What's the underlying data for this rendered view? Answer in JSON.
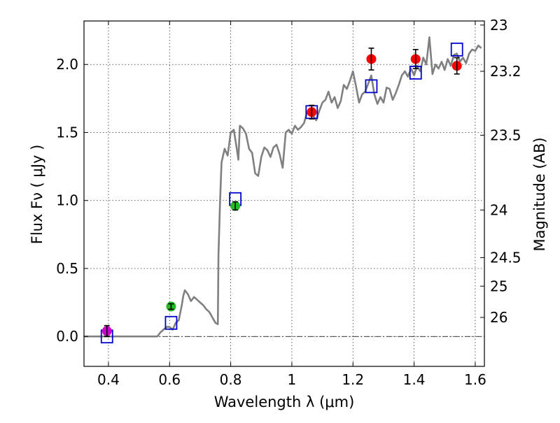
{
  "chart_data": {
    "type": "scatter",
    "title": "",
    "xlabel": "Wavelength  λ (μm)",
    "ylabel": "Flux  Fν  ( μJy )",
    "ylabel_right": "Magnitude (AB)",
    "xlim": [
      0.32,
      1.63
    ],
    "ylim": [
      -0.22,
      2.32
    ],
    "grid": true,
    "x_ticks": [
      0.4,
      0.6,
      0.8,
      1.0,
      1.2,
      1.4,
      1.6
    ],
    "x_tick_labels": [
      "0.4",
      "0.6",
      "0.8",
      "1",
      "1.2",
      "1.4",
      "1.6"
    ],
    "y_ticks": [
      0.0,
      0.5,
      1.0,
      1.5,
      2.0
    ],
    "y_tick_labels": [
      "0.0",
      "0.5",
      "1.0",
      "1.5",
      "2.0"
    ],
    "right_axis": {
      "labels": [
        "23",
        "23.2",
        "23.5",
        "24",
        "24.5",
        "25",
        "26"
      ],
      "flux_positions": [
        2.29,
        1.95,
        1.48,
        0.93,
        0.58,
        0.37,
        0.14
      ]
    },
    "series": [
      {
        "name": "model spectrum",
        "kind": "line",
        "color": "#808080",
        "x": [
          0.32,
          0.56,
          0.57,
          0.59,
          0.6,
          0.61,
          0.62,
          0.63,
          0.64,
          0.645,
          0.65,
          0.66,
          0.67,
          0.68,
          0.69,
          0.7,
          0.71,
          0.72,
          0.73,
          0.74,
          0.75,
          0.758,
          0.76,
          0.765,
          0.77,
          0.78,
          0.79,
          0.8,
          0.81,
          0.82,
          0.825,
          0.83,
          0.84,
          0.85,
          0.86,
          0.87,
          0.88,
          0.89,
          0.9,
          0.91,
          0.92,
          0.93,
          0.94,
          0.95,
          0.96,
          0.97,
          0.98,
          0.99,
          1.0,
          1.01,
          1.02,
          1.03,
          1.04,
          1.05,
          1.06,
          1.07,
          1.08,
          1.09,
          1.1,
          1.11,
          1.12,
          1.13,
          1.14,
          1.15,
          1.16,
          1.17,
          1.18,
          1.19,
          1.2,
          1.21,
          1.22,
          1.23,
          1.24,
          1.25,
          1.26,
          1.27,
          1.28,
          1.29,
          1.3,
          1.31,
          1.32,
          1.33,
          1.34,
          1.35,
          1.36,
          1.37,
          1.38,
          1.39,
          1.4,
          1.41,
          1.42,
          1.43,
          1.44,
          1.45,
          1.46,
          1.47,
          1.48,
          1.49,
          1.5,
          1.51,
          1.52,
          1.53,
          1.54,
          1.55,
          1.56,
          1.57,
          1.58,
          1.59,
          1.6,
          1.61,
          1.62
        ],
        "y": [
          0.0,
          0.0,
          0.03,
          0.07,
          0.07,
          0.05,
          0.1,
          0.12,
          0.23,
          0.3,
          0.34,
          0.31,
          0.26,
          0.29,
          0.27,
          0.25,
          0.23,
          0.2,
          0.18,
          0.14,
          0.1,
          0.09,
          0.6,
          0.98,
          1.28,
          1.38,
          1.33,
          1.5,
          1.52,
          1.38,
          1.3,
          1.55,
          1.53,
          1.49,
          1.38,
          1.35,
          1.2,
          1.18,
          1.32,
          1.39,
          1.37,
          1.32,
          1.39,
          1.41,
          1.34,
          1.24,
          1.5,
          1.52,
          1.49,
          1.55,
          1.52,
          1.54,
          1.57,
          1.65,
          1.67,
          1.62,
          1.59,
          1.66,
          1.72,
          1.74,
          1.8,
          1.72,
          1.76,
          1.68,
          1.73,
          1.85,
          1.82,
          1.88,
          1.95,
          1.84,
          1.72,
          1.78,
          1.8,
          1.86,
          1.92,
          1.78,
          1.71,
          1.76,
          1.72,
          1.83,
          1.82,
          1.74,
          1.79,
          1.85,
          1.92,
          1.95,
          1.91,
          1.97,
          1.92,
          1.99,
          1.95,
          2.05,
          2.0,
          2.2,
          1.93,
          2.0,
          1.97,
          2.02,
          1.96,
          2.04,
          1.99,
          2.07,
          2.08,
          2.02,
          2.05,
          2.01,
          2.08,
          2.11,
          2.1,
          2.14,
          2.12
        ]
      },
      {
        "name": "model photometry",
        "kind": "open-square",
        "color": "#0000cc",
        "x": [
          0.395,
          0.605,
          0.815,
          1.065,
          1.26,
          1.405,
          1.54
        ],
        "y": [
          0.0,
          0.1,
          1.01,
          1.65,
          1.84,
          1.94,
          2.11
        ]
      },
      {
        "name": "observed (magenta)",
        "kind": "circle",
        "color": "#cc00cc",
        "x": [
          0.395
        ],
        "y": [
          0.04
        ],
        "yerr": [
          0.04
        ]
      },
      {
        "name": "observed (green)",
        "kind": "circle",
        "color": "#22bb22",
        "x": [
          0.605,
          0.815
        ],
        "y": [
          0.22,
          0.96
        ],
        "yerr": [
          0.02,
          0.03
        ]
      },
      {
        "name": "observed (red)",
        "kind": "circle",
        "color": "#ff0000",
        "x": [
          1.065,
          1.26,
          1.405,
          1.54
        ],
        "y": [
          1.65,
          2.04,
          2.04,
          1.99
        ],
        "yerr": [
          0.05,
          0.08,
          0.07,
          0.06
        ]
      }
    ]
  }
}
